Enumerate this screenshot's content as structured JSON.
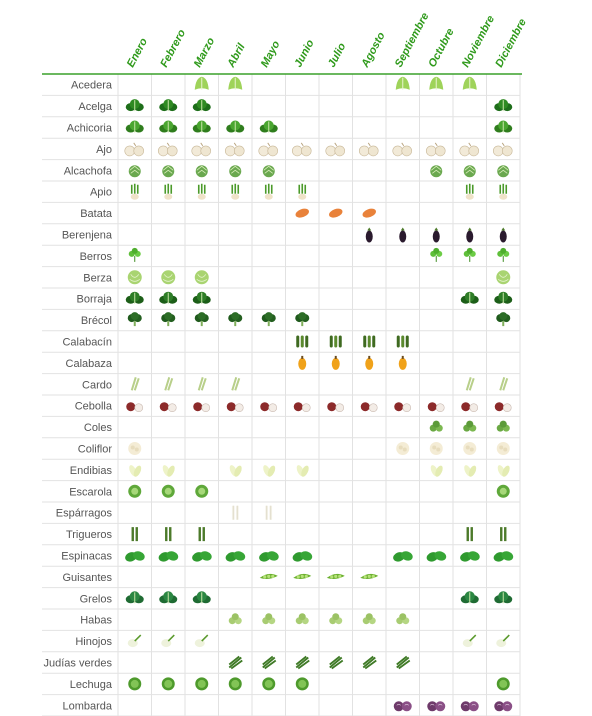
{
  "chart_data": {
    "type": "table",
    "title": "",
    "months": [
      "Enero",
      "Febrero",
      "Marzo",
      "Abril",
      "Mayo",
      "Junio",
      "Julio",
      "Agosto",
      "Septiembre",
      "Octubre",
      "Noviembre",
      "Diciembre"
    ],
    "rows": [
      {
        "name": "Acedera",
        "months": [
          3,
          4,
          9,
          10,
          11
        ],
        "icon": "sorrel-icon"
      },
      {
        "name": "Acelga",
        "months": [
          1,
          2,
          3,
          12
        ],
        "icon": "chard-icon"
      },
      {
        "name": "Achicoria",
        "months": [
          1,
          2,
          3,
          4,
          5,
          12
        ],
        "icon": "chicory-icon"
      },
      {
        "name": "Ajo",
        "months": [
          1,
          2,
          3,
          4,
          5,
          6,
          7,
          8,
          9,
          10,
          11,
          12
        ],
        "icon": "garlic-icon"
      },
      {
        "name": "Alcachofa",
        "months": [
          1,
          2,
          3,
          4,
          5,
          10,
          11,
          12
        ],
        "icon": "artichoke-icon"
      },
      {
        "name": "Apio",
        "months": [
          1,
          2,
          3,
          4,
          5,
          6,
          11,
          12
        ],
        "icon": "celery-icon"
      },
      {
        "name": "Batata",
        "months": [
          6,
          7,
          8
        ],
        "icon": "sweet-potato-icon"
      },
      {
        "name": "Berenjena",
        "months": [
          8,
          9,
          10,
          11,
          12
        ],
        "icon": "eggplant-icon"
      },
      {
        "name": "Berros",
        "months": [
          1,
          10,
          11,
          12
        ],
        "icon": "watercress-icon"
      },
      {
        "name": "Berza",
        "months": [
          1,
          2,
          3,
          12
        ],
        "icon": "cabbage-icon"
      },
      {
        "name": "Borraja",
        "months": [
          1,
          2,
          3,
          11,
          12
        ],
        "icon": "borage-icon"
      },
      {
        "name": "Brécol",
        "months": [
          1,
          2,
          3,
          4,
          5,
          6,
          12
        ],
        "icon": "broccoli-icon"
      },
      {
        "name": "Calabacín",
        "months": [
          6,
          7,
          8,
          9
        ],
        "icon": "zucchini-icon"
      },
      {
        "name": "Calabaza",
        "months": [
          6,
          7,
          8,
          9
        ],
        "icon": "pumpkin-icon"
      },
      {
        "name": "Cardo",
        "months": [
          1,
          2,
          3,
          4,
          11,
          12
        ],
        "icon": "cardoon-icon"
      },
      {
        "name": "Cebolla",
        "months": [
          1,
          2,
          3,
          4,
          5,
          6,
          7,
          8,
          9,
          10,
          11,
          12
        ],
        "icon": "onion-icon"
      },
      {
        "name": "Coles",
        "months": [
          10,
          11,
          12
        ],
        "icon": "brussels-sprouts-icon"
      },
      {
        "name": "Coliflor",
        "months": [
          1,
          9,
          10,
          11,
          12
        ],
        "icon": "cauliflower-icon"
      },
      {
        "name": "Endibias",
        "months": [
          1,
          2,
          4,
          5,
          6,
          10,
          11,
          12
        ],
        "icon": "endive-icon"
      },
      {
        "name": "Escarola",
        "months": [
          1,
          2,
          3,
          12
        ],
        "icon": "escarole-icon"
      },
      {
        "name": "Espárragos",
        "months": [
          4,
          5
        ],
        "icon": "white-asparagus-icon"
      },
      {
        "name": "Trigueros",
        "months": [
          1,
          2,
          3,
          11,
          12
        ],
        "icon": "green-asparagus-icon"
      },
      {
        "name": "Espinacas",
        "months": [
          1,
          2,
          3,
          4,
          5,
          6,
          9,
          10,
          11,
          12
        ],
        "icon": "spinach-icon"
      },
      {
        "name": "Guisantes",
        "months": [
          5,
          6,
          7,
          8
        ],
        "icon": "peas-icon"
      },
      {
        "name": "Grelos",
        "months": [
          1,
          2,
          3,
          11,
          12
        ],
        "icon": "turnip-greens-icon"
      },
      {
        "name": "Habas",
        "months": [
          4,
          5,
          6,
          7,
          8,
          9
        ],
        "icon": "broad-beans-icon"
      },
      {
        "name": "Hinojos",
        "months": [
          1,
          2,
          3,
          11,
          12
        ],
        "icon": "fennel-icon"
      },
      {
        "name": "Judías verdes",
        "months": [
          4,
          5,
          6,
          7,
          8,
          9
        ],
        "icon": "green-beans-icon"
      },
      {
        "name": "Lechuga",
        "months": [
          1,
          2,
          3,
          4,
          5,
          6,
          12
        ],
        "icon": "lettuce-icon"
      },
      {
        "name": "Lombarda",
        "months": [
          9,
          10,
          11,
          12
        ],
        "icon": "red-cabbage-icon"
      }
    ],
    "colors": {
      "header_text": "#2f9a1b",
      "header_line": "#3aa02a",
      "row_label": "#555555",
      "grid": "#e2e2e2"
    }
  }
}
